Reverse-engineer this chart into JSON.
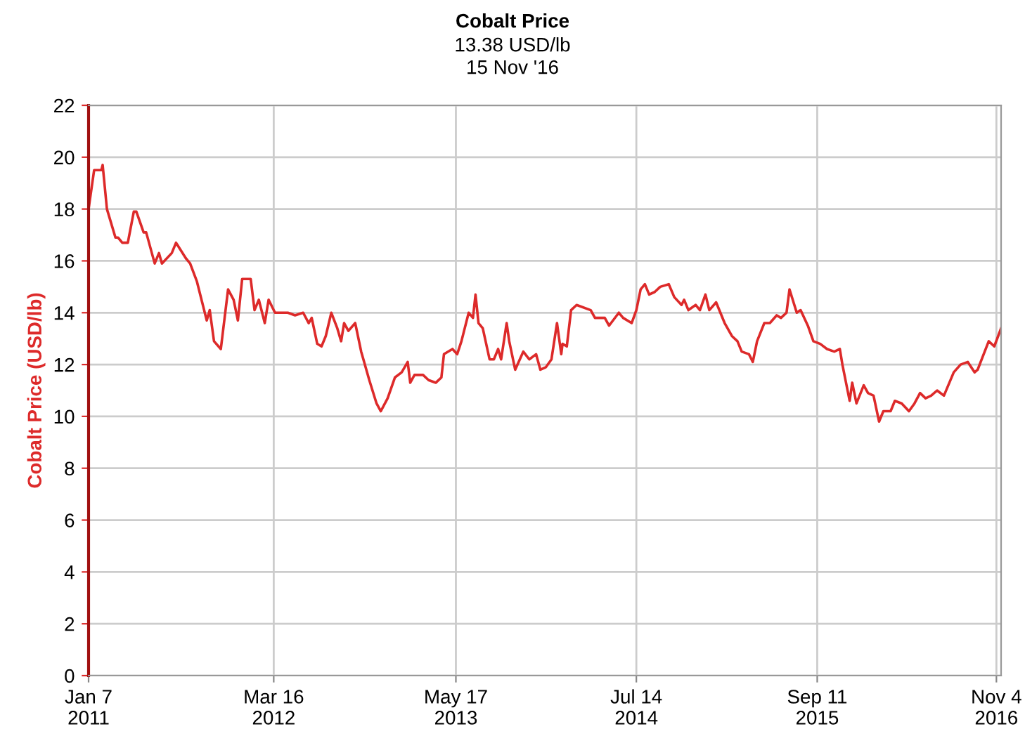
{
  "chart_data": {
    "type": "line",
    "title": "Cobalt Price",
    "subtitle": "13.38 USD/lb",
    "annotations": [
      "15 Nov '16"
    ],
    "ylabel": "Cobalt Price (USD/lb)",
    "x": [
      "2011-01-07",
      "2011-01-20",
      "2011-02-06",
      "2011-02-09",
      "2011-02-19",
      "2011-03-11",
      "2011-03-17",
      "2011-03-27",
      "2011-04-09",
      "2011-04-23",
      "2011-04-29",
      "2011-05-16",
      "2011-05-22",
      "2011-06-11",
      "2011-06-21",
      "2011-06-28",
      "2011-07-21",
      "2011-07-31",
      "2011-08-23",
      "2011-09-02",
      "2011-09-18",
      "2011-10-11",
      "2011-10-18",
      "2011-10-28",
      "2011-11-13",
      "2011-11-30",
      "2011-12-13",
      "2011-12-23",
      "2012-01-02",
      "2012-01-22",
      "2012-01-31",
      "2012-02-10",
      "2012-02-24",
      "2012-03-04",
      "2012-03-19",
      "2012-04-18",
      "2012-05-05",
      "2012-05-24",
      "2012-06-06",
      "2012-06-13",
      "2012-06-26",
      "2012-07-06",
      "2012-07-16",
      "2012-07-29",
      "2012-08-12",
      "2012-08-21",
      "2012-08-28",
      "2012-09-07",
      "2012-09-23",
      "2012-10-07",
      "2012-10-26",
      "2012-11-12",
      "2012-11-22",
      "2012-12-08",
      "2012-12-25",
      "2013-01-10",
      "2013-01-24",
      "2013-01-30",
      "2013-02-09",
      "2013-03-01",
      "2013-03-14",
      "2013-03-31",
      "2013-04-13",
      "2013-04-19",
      "2013-05-09",
      "2013-05-20",
      "2013-05-30",
      "2013-06-16",
      "2013-06-26",
      "2013-07-02",
      "2013-07-09",
      "2013-07-19",
      "2013-08-04",
      "2013-08-14",
      "2013-08-24",
      "2013-08-31",
      "2013-09-13",
      "2013-09-19",
      "2013-10-03",
      "2013-10-22",
      "2013-11-05",
      "2013-11-21",
      "2013-12-01",
      "2013-12-14",
      "2013-12-27",
      "2014-01-09",
      "2014-01-19",
      "2014-01-22",
      "2014-02-01",
      "2014-02-11",
      "2014-02-24",
      "2014-03-29",
      "2014-04-08",
      "2014-05-01",
      "2014-05-11",
      "2014-06-03",
      "2014-06-13",
      "2014-07-03",
      "2014-07-14",
      "2014-07-24",
      "2014-08-03",
      "2014-08-13",
      "2014-08-26",
      "2014-09-08",
      "2014-09-28",
      "2014-10-11",
      "2014-10-28",
      "2014-11-03",
      "2014-11-13",
      "2014-11-30",
      "2014-12-10",
      "2014-12-23",
      "2015-01-01",
      "2015-01-17",
      "2015-02-06",
      "2015-02-23",
      "2015-03-08",
      "2015-03-18",
      "2015-04-04",
      "2015-04-13",
      "2015-04-23",
      "2015-05-10",
      "2015-05-23",
      "2015-06-08",
      "2015-06-18",
      "2015-07-01",
      "2015-07-08",
      "2015-07-25",
      "2015-08-03",
      "2015-08-20",
      "2015-09-02",
      "2015-09-18",
      "2015-10-04",
      "2015-10-21",
      "2015-11-03",
      "2015-11-09",
      "2015-11-26",
      "2015-12-02",
      "2015-12-12",
      "2015-12-29",
      "2016-01-08",
      "2016-01-21",
      "2016-02-03",
      "2016-02-13",
      "2016-03-01",
      "2016-03-11",
      "2016-03-27",
      "2016-04-13",
      "2016-04-26",
      "2016-05-09",
      "2016-05-22",
      "2016-06-04",
      "2016-06-18",
      "2016-07-04",
      "2016-07-27",
      "2016-08-12",
      "2016-08-29",
      "2016-09-14",
      "2016-09-21",
      "2016-10-17",
      "2016-10-30",
      "2016-11-15"
    ],
    "series": [
      {
        "color": "#dd2a2a",
        "values": [
          18.0,
          19.5,
          19.5,
          19.7,
          18.0,
          16.9,
          16.9,
          16.7,
          16.7,
          17.9,
          17.9,
          17.1,
          17.1,
          15.9,
          16.3,
          15.9,
          16.3,
          16.7,
          16.1,
          15.9,
          15.2,
          13.7,
          14.1,
          12.9,
          12.6,
          14.9,
          14.5,
          13.7,
          15.3,
          15.3,
          14.1,
          14.5,
          13.6,
          14.5,
          14.0,
          14.0,
          13.9,
          14.0,
          13.6,
          13.8,
          12.8,
          12.7,
          13.1,
          14.0,
          13.4,
          12.9,
          13.6,
          13.3,
          13.6,
          12.5,
          11.4,
          10.5,
          10.2,
          10.7,
          11.5,
          11.7,
          12.1,
          11.3,
          11.6,
          11.6,
          11.4,
          11.3,
          11.5,
          12.4,
          12.6,
          12.4,
          12.9,
          14.0,
          13.8,
          14.7,
          13.6,
          13.4,
          12.2,
          12.2,
          12.6,
          12.2,
          13.6,
          12.9,
          11.8,
          12.5,
          12.2,
          12.4,
          11.8,
          11.9,
          12.2,
          13.6,
          12.4,
          12.8,
          12.7,
          14.1,
          14.3,
          14.1,
          13.8,
          13.8,
          13.5,
          14.0,
          13.8,
          13.6,
          14.1,
          14.9,
          15.1,
          14.7,
          14.8,
          15.0,
          15.1,
          14.6,
          14.3,
          14.5,
          14.1,
          14.3,
          14.1,
          14.7,
          14.1,
          14.4,
          13.6,
          13.1,
          12.9,
          12.5,
          12.4,
          12.1,
          12.9,
          13.6,
          13.6,
          13.9,
          13.8,
          14.0,
          14.9,
          14.0,
          14.1,
          13.5,
          12.9,
          12.8,
          12.6,
          12.5,
          12.6,
          12.0,
          10.6,
          11.3,
          10.5,
          11.2,
          10.9,
          10.8,
          9.8,
          10.2,
          10.2,
          10.6,
          10.5,
          10.2,
          10.5,
          10.9,
          10.7,
          10.8,
          11.0,
          10.8,
          11.7,
          12.0,
          12.1,
          11.7,
          11.8,
          12.9,
          12.7,
          13.4
        ]
      }
    ],
    "xlim": [
      "2011-01-07",
      "2016-11-15"
    ],
    "xticks": [
      {
        "value": "2011-01-07",
        "label": "Jan 7\n2011"
      },
      {
        "value": "2012-03-16",
        "label": "Mar 16\n2012"
      },
      {
        "value": "2013-05-17",
        "label": "May 17\n2013"
      },
      {
        "value": "2014-07-14",
        "label": "Jul 14\n2014"
      },
      {
        "value": "2015-09-11",
        "label": "Sep 11\n2015"
      },
      {
        "value": "2016-11-04",
        "label": "Nov 4\n2016"
      }
    ],
    "ylim": [
      0,
      22
    ],
    "yticks": [
      0,
      2,
      4,
      6,
      8,
      10,
      12,
      14,
      16,
      18,
      20,
      22
    ],
    "grid": true,
    "marker": "none",
    "line_style": "solid"
  }
}
